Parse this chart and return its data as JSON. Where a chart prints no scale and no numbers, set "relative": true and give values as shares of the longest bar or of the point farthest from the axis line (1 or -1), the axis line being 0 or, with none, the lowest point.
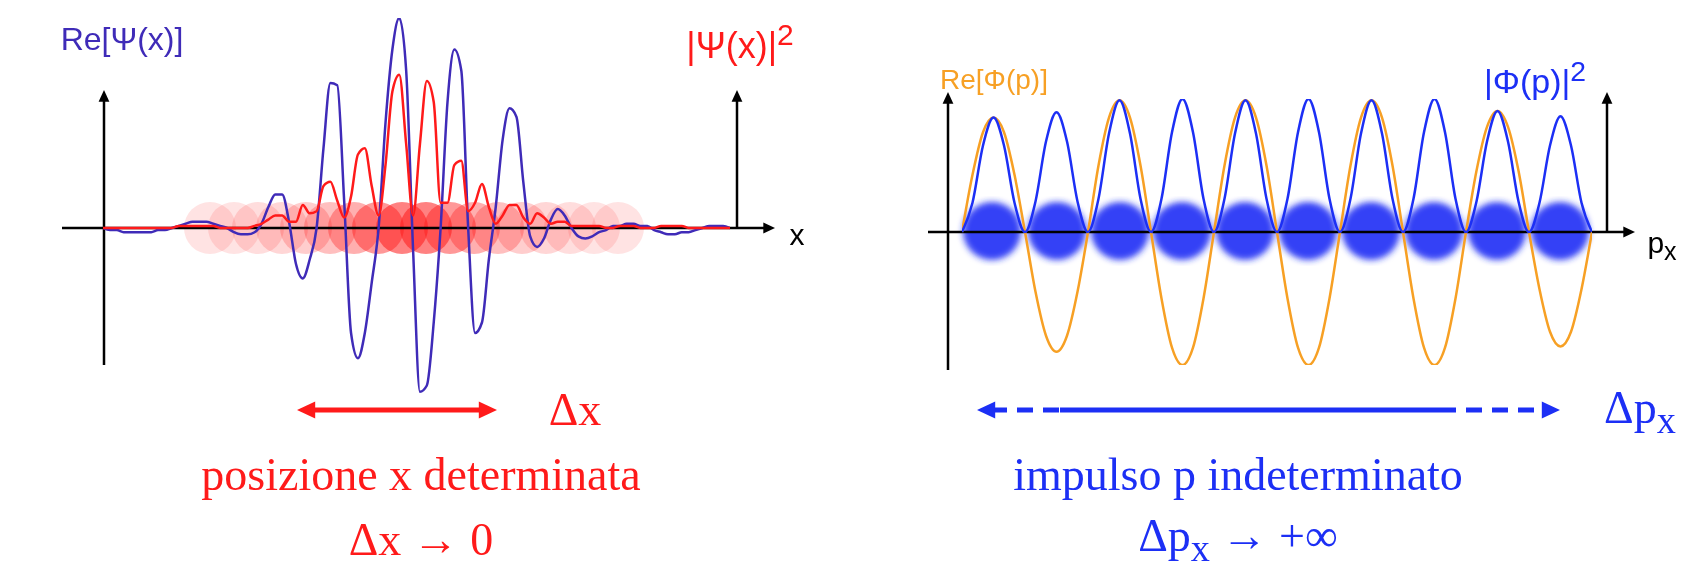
{
  "chart_data": [
    {
      "type": "line",
      "relative": true,
      "ylabel": "Re[Ψ(x)]",
      "y2label": "|Ψ(x)|$^{2}$",
      "xlabel": "x",
      "annotations": [
        "Δx",
        "posizione x determinata",
        "Δx → 0"
      ],
      "categories": [
        null,
        null,
        null,
        null,
        null,
        null,
        null,
        null,
        null,
        null,
        null,
        null,
        null,
        null,
        null,
        null,
        null,
        null,
        null,
        null,
        null,
        null,
        null,
        null,
        null,
        null,
        null,
        null,
        null,
        null,
        null,
        null,
        null,
        null,
        null,
        null,
        null,
        null,
        null,
        null,
        null,
        null,
        null,
        null,
        null,
        null,
        null,
        null,
        null,
        null,
        null,
        null,
        null,
        null,
        null,
        null,
        null,
        null,
        null,
        null,
        null,
        null,
        null,
        null,
        null,
        null,
        null,
        null,
        null,
        null,
        null,
        null,
        null,
        null,
        null,
        null,
        null,
        null,
        null,
        null,
        null,
        null,
        null,
        null,
        null,
        null,
        null,
        null,
        null,
        null,
        null,
        null
      ],
      "series": [
        {
          "color": "#3f2bb8",
          "values": [
            0,
            -0.01,
            -0.01,
            -0.02,
            -0.02,
            -0.02,
            -0.02,
            -0.02,
            -0.01,
            -0.01,
            0,
            0.01,
            0.02,
            0.03,
            0.03,
            0.03,
            0.02,
            0.01,
            0,
            -0.02,
            -0.03,
            -0.03,
            -0.02,
            0.02,
            0.1,
            0.16,
            0.16,
            0.03,
            -0.17,
            -0.24,
            -0.15,
            0,
            0.38,
            0.69,
            0.68,
            0.13,
            -0.5,
            -0.62,
            -0.5,
            -0.26,
            0,
            0.5,
            0.85,
            1,
            0.75,
            -0.1,
            -0.78,
            -0.75,
            -0.45,
            0,
            0.6,
            0.85,
            0.75,
            0,
            -0.5,
            -0.45,
            -0.15,
            0.1,
            0.42,
            0.57,
            0.53,
            0.22,
            -0.04,
            -0.09,
            -0.05,
            0.04,
            0.09,
            0.06,
            0,
            -0.04,
            -0.05,
            -0.04,
            -0.02,
            -0.01,
            0.01,
            0.01,
            0.02,
            0.02,
            0.01,
            0.01,
            -0.01,
            -0.02,
            -0.03,
            -0.03,
            -0.02,
            -0.02,
            -0.01,
            0,
            0.01,
            0.01,
            0.01,
            0
          ]
        },
        {
          "color": "#ff1a1a",
          "values": [
            0,
            0,
            0,
            0,
            0,
            0,
            0,
            0,
            0,
            0,
            0,
            0.01,
            0.01,
            0.01,
            0.01,
            0.01,
            0.01,
            0,
            0,
            0,
            0,
            0,
            0.01,
            0.02,
            0.04,
            0.06,
            0.06,
            0.03,
            0.03,
            0.11,
            0.07,
            0.08,
            0.2,
            0.22,
            0.13,
            0.05,
            0.15,
            0.35,
            0.38,
            0.2,
            0.06,
            0.3,
            0.65,
            0.73,
            0.4,
            0.06,
            0.4,
            0.7,
            0.6,
            0.12,
            0.12,
            0.3,
            0.32,
            0.08,
            0.12,
            0.21,
            0.1,
            0.02,
            0.06,
            0.11,
            0.11,
            0.05,
            0.02,
            0.07,
            0.05,
            0.02,
            0.03,
            0.03,
            0.01,
            0.01,
            0.01,
            0.01,
            0.01,
            0,
            0,
            0.01,
            0.01,
            0.01,
            0,
            0,
            0,
            0.01,
            0.01,
            0.01,
            0.01,
            0,
            0,
            0,
            0,
            0,
            0,
            0
          ]
        }
      ]
    },
    {
      "type": "line",
      "relative": true,
      "ylabel": "Re[Φ(p)]",
      "y2label": "|Φ(p)|$^{2}$",
      "xlabel": "p$_{x}$",
      "annotations": [
        "Δp$_{x}$",
        "impulso p indeterminato",
        "Δp$_{x}$ → +∞"
      ],
      "categories": [
        null,
        null,
        null,
        null,
        null,
        null,
        null,
        null,
        null,
        null,
        null,
        null,
        null,
        null,
        null,
        null,
        null,
        null,
        null,
        null,
        null,
        null,
        null,
        null,
        null,
        null,
        null,
        null,
        null,
        null,
        null,
        null,
        null,
        null,
        null,
        null,
        null,
        null,
        null,
        null,
        null,
        null,
        null,
        null,
        null,
        null,
        null,
        null,
        null,
        null,
        null,
        null,
        null,
        null,
        null,
        null,
        null,
        null,
        null,
        null,
        null
      ],
      "series": [
        {
          "color": "#f7a024",
          "values": [
            0,
            0.43,
            0.75,
            0.86,
            0.75,
            0.43,
            0,
            -0.45,
            -0.78,
            -0.9,
            -0.78,
            -0.45,
            0,
            0.5,
            0.86,
            0.99,
            0.86,
            0.5,
            0,
            -0.5,
            -0.87,
            -1,
            -0.87,
            -0.5,
            0,
            0.5,
            0.86,
            0.99,
            0.86,
            0.5,
            0,
            -0.5,
            -0.87,
            -1,
            -0.87,
            -0.5,
            0,
            0.5,
            0.86,
            0.99,
            0.86,
            0.5,
            0,
            -0.5,
            -0.87,
            -1,
            -0.87,
            -0.5,
            0,
            0.46,
            0.79,
            0.91,
            0.79,
            0.46,
            0,
            -0.43,
            -0.75,
            -0.86,
            -0.75,
            -0.43,
            0
          ]
        },
        {
          "color": "#1c2ff5",
          "values": [
            0,
            0.22,
            0.65,
            0.86,
            0.65,
            0.22,
            0,
            0.23,
            0.68,
            0.9,
            0.68,
            0.23,
            0,
            0.25,
            0.74,
            0.99,
            0.74,
            0.25,
            0,
            0.25,
            0.75,
            1,
            0.75,
            0.25,
            0,
            0.25,
            0.74,
            0.99,
            0.74,
            0.25,
            0,
            0.25,
            0.75,
            1,
            0.75,
            0.25,
            0,
            0.25,
            0.74,
            0.99,
            0.74,
            0.25,
            0,
            0.25,
            0.75,
            1,
            0.75,
            0.25,
            0,
            0.23,
            0.68,
            0.91,
            0.68,
            0.23,
            0,
            0.22,
            0.65,
            0.87,
            0.65,
            0.22,
            0
          ]
        }
      ]
    }
  ]
}
